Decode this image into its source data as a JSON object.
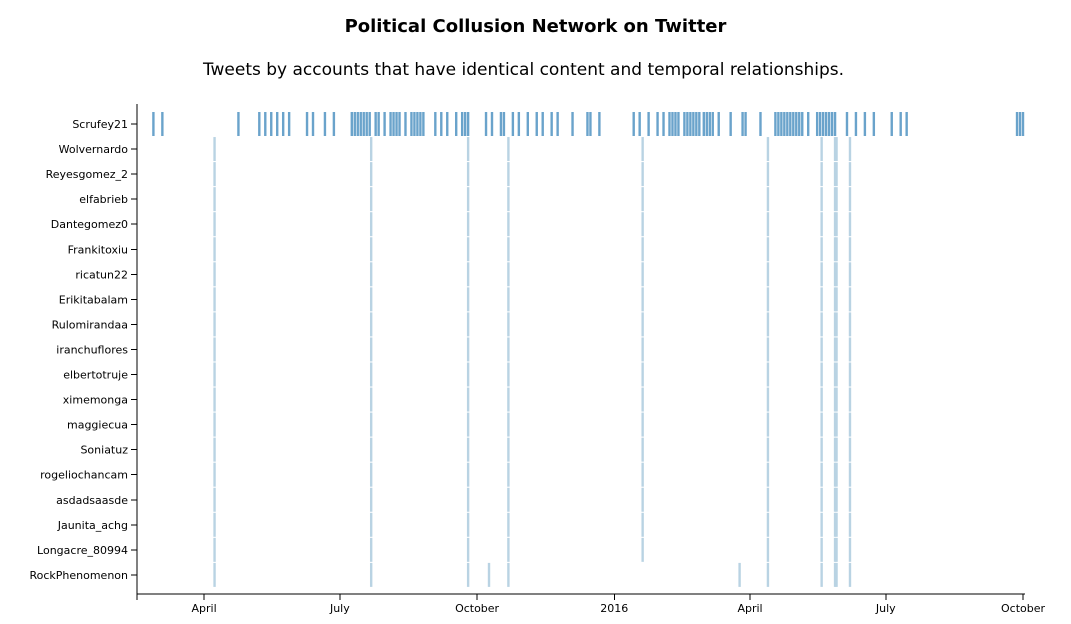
{
  "chart_data": {
    "type": "timeline",
    "title": "Political Collusion Network on Twitter",
    "subtitle": "Tweets by accounts that have identical content and temporal relationships.",
    "accounts": [
      "Scrufey21",
      "Wolvernardo",
      "Reyesgomez_2",
      "elfabrieb",
      "Dantegomez0",
      "Frankitoxiu",
      "ricatun22",
      "Erikitabalam",
      "Rulomirandaa",
      "iranchuflores",
      "elbertotruje",
      "ximemonga",
      "maggiecua",
      "Soniatuz",
      "rogeliochancam",
      "asdadsaasde",
      "Jaunita_achg",
      "Longacre_80994",
      "RockPhenomenon"
    ],
    "xlim": [
      "2015-02-15",
      "2016-10-01"
    ],
    "x_ticks": [
      {
        "date": "2015-04-01",
        "label": "April"
      },
      {
        "date": "2015-07-01",
        "label": "July"
      },
      {
        "date": "2015-10-01",
        "label": "October"
      },
      {
        "date": "2016-01-01",
        "label": "2016"
      },
      {
        "date": "2016-04-01",
        "label": "April"
      },
      {
        "date": "2016-07-01",
        "label": "July"
      },
      {
        "date": "2016-10-01",
        "label": "October"
      }
    ],
    "colors": {
      "dark": "#6aa3cb",
      "light": "#b9d3e3"
    },
    "series": [
      {
        "account": "Scrufey21",
        "tweet_dates": [
          "2015-02-26",
          "2015-03-04",
          "2015-04-24",
          "2015-05-08",
          "2015-05-12",
          "2015-05-16",
          "2015-05-20",
          "2015-05-24",
          "2015-05-28",
          "2015-06-09",
          "2015-06-13",
          "2015-06-21",
          "2015-06-27",
          "2015-07-09",
          "2015-07-11",
          "2015-07-13",
          "2015-07-15",
          "2015-07-17",
          "2015-07-19",
          "2015-07-21",
          "2015-07-25",
          "2015-07-27",
          "2015-07-31",
          "2015-08-04",
          "2015-08-06",
          "2015-08-08",
          "2015-08-10",
          "2015-08-14",
          "2015-08-18",
          "2015-08-20",
          "2015-08-22",
          "2015-08-24",
          "2015-08-26",
          "2015-09-03",
          "2015-09-07",
          "2015-09-11",
          "2015-09-17",
          "2015-09-21",
          "2015-09-23",
          "2015-09-25",
          "2015-10-07",
          "2015-10-11",
          "2015-10-17",
          "2015-10-19",
          "2015-10-25",
          "2015-10-29",
          "2015-11-04",
          "2015-11-10",
          "2015-11-14",
          "2015-11-20",
          "2015-11-24",
          "2015-12-04",
          "2015-12-14",
          "2015-12-16",
          "2015-12-22",
          "2016-01-14",
          "2016-01-18",
          "2016-01-24",
          "2016-01-30",
          "2016-02-03",
          "2016-02-07",
          "2016-02-09",
          "2016-02-11",
          "2016-02-13",
          "2016-02-17",
          "2016-02-19",
          "2016-02-21",
          "2016-02-23",
          "2016-02-25",
          "2016-02-27",
          "2016-03-01",
          "2016-03-03",
          "2016-03-05",
          "2016-03-07",
          "2016-03-11",
          "2016-03-19",
          "2016-03-27",
          "2016-03-29",
          "2016-04-08",
          "2016-04-18",
          "2016-04-20",
          "2016-04-22",
          "2016-04-24",
          "2016-04-26",
          "2016-04-28",
          "2016-04-30",
          "2016-05-02",
          "2016-05-04",
          "2016-05-06",
          "2016-05-10",
          "2016-05-16",
          "2016-05-18",
          "2016-05-20",
          "2016-05-22",
          "2016-05-24",
          "2016-05-26",
          "2016-05-28",
          "2016-06-05",
          "2016-06-11",
          "2016-06-17",
          "2016-06-23",
          "2016-07-05",
          "2016-07-11",
          "2016-07-15",
          "2016-09-27",
          "2016-09-29",
          "2016-10-01"
        ]
      },
      {
        "account": "Wolvernardo",
        "tweet_dates": [
          "2015-04-08",
          "2015-07-22",
          "2015-09-25",
          "2015-10-22",
          "2016-01-20",
          "2016-04-13",
          "2016-05-19",
          "2016-05-28",
          "2016-05-29",
          "2016-06-07"
        ]
      },
      {
        "account": "Reyesgomez_2",
        "tweet_dates": [
          "2015-04-08",
          "2015-07-22",
          "2015-09-25",
          "2015-10-22",
          "2016-01-20",
          "2016-04-13",
          "2016-05-19",
          "2016-05-28",
          "2016-05-29",
          "2016-06-07"
        ]
      },
      {
        "account": "elfabrieb",
        "tweet_dates": [
          "2015-04-08",
          "2015-07-22",
          "2015-09-25",
          "2015-10-22",
          "2016-01-20",
          "2016-04-13",
          "2016-05-19",
          "2016-05-28",
          "2016-05-29",
          "2016-06-07"
        ]
      },
      {
        "account": "Dantegomez0",
        "tweet_dates": [
          "2015-04-08",
          "2015-07-22",
          "2015-09-25",
          "2015-10-22",
          "2016-01-20",
          "2016-04-13",
          "2016-05-19",
          "2016-05-28",
          "2016-05-29",
          "2016-06-07"
        ]
      },
      {
        "account": "Frankitoxiu",
        "tweet_dates": [
          "2015-04-08",
          "2015-07-22",
          "2015-09-25",
          "2015-10-22",
          "2016-01-20",
          "2016-04-13",
          "2016-05-19",
          "2016-05-28",
          "2016-05-29",
          "2016-06-07"
        ]
      },
      {
        "account": "ricatun22",
        "tweet_dates": [
          "2015-04-08",
          "2015-07-22",
          "2015-09-25",
          "2015-10-22",
          "2016-01-20",
          "2016-04-13",
          "2016-05-19",
          "2016-05-28",
          "2016-05-29",
          "2016-06-07"
        ]
      },
      {
        "account": "Erikitabalam",
        "tweet_dates": [
          "2015-04-08",
          "2015-07-22",
          "2015-09-25",
          "2015-10-22",
          "2016-01-20",
          "2016-04-13",
          "2016-05-19",
          "2016-05-28",
          "2016-05-29",
          "2016-06-07"
        ]
      },
      {
        "account": "Rulomirandaa",
        "tweet_dates": [
          "2015-04-08",
          "2015-07-22",
          "2015-09-25",
          "2015-10-22",
          "2016-01-20",
          "2016-04-13",
          "2016-05-19",
          "2016-05-28",
          "2016-05-29",
          "2016-06-07"
        ]
      },
      {
        "account": "iranchuflores",
        "tweet_dates": [
          "2015-04-08",
          "2015-07-22",
          "2015-09-25",
          "2015-10-22",
          "2016-01-20",
          "2016-04-13",
          "2016-05-19",
          "2016-05-28",
          "2016-05-29",
          "2016-06-07"
        ]
      },
      {
        "account": "elbertotruje",
        "tweet_dates": [
          "2015-04-08",
          "2015-07-22",
          "2015-09-25",
          "2015-10-22",
          "2016-01-20",
          "2016-04-13",
          "2016-05-19",
          "2016-05-28",
          "2016-05-29",
          "2016-06-07"
        ]
      },
      {
        "account": "ximemonga",
        "tweet_dates": [
          "2015-04-08",
          "2015-07-22",
          "2015-09-25",
          "2015-10-22",
          "2016-01-20",
          "2016-04-13",
          "2016-05-19",
          "2016-05-28",
          "2016-05-29",
          "2016-06-07"
        ]
      },
      {
        "account": "maggiecua",
        "tweet_dates": [
          "2015-04-08",
          "2015-07-22",
          "2015-09-25",
          "2015-10-22",
          "2016-01-20",
          "2016-04-13",
          "2016-05-19",
          "2016-05-28",
          "2016-05-29",
          "2016-06-07"
        ]
      },
      {
        "account": "Soniatuz",
        "tweet_dates": [
          "2015-04-08",
          "2015-07-22",
          "2015-09-25",
          "2015-10-22",
          "2016-01-20",
          "2016-04-13",
          "2016-05-19",
          "2016-05-28",
          "2016-05-29",
          "2016-06-07"
        ]
      },
      {
        "account": "rogeliochancam",
        "tweet_dates": [
          "2015-04-08",
          "2015-07-22",
          "2015-09-25",
          "2015-10-22",
          "2016-01-20",
          "2016-04-13",
          "2016-05-19",
          "2016-05-28",
          "2016-05-29",
          "2016-06-07"
        ]
      },
      {
        "account": "asdadsaasde",
        "tweet_dates": [
          "2015-04-08",
          "2015-07-22",
          "2015-09-25",
          "2015-10-22",
          "2016-01-20",
          "2016-04-13",
          "2016-05-19",
          "2016-05-28",
          "2016-05-29",
          "2016-06-07"
        ]
      },
      {
        "account": "Jaunita_achg",
        "tweet_dates": [
          "2015-04-08",
          "2015-07-22",
          "2015-09-25",
          "2015-10-22",
          "2016-01-20",
          "2016-04-13",
          "2016-05-19",
          "2016-05-28",
          "2016-05-29",
          "2016-06-07"
        ]
      },
      {
        "account": "Longacre_80994",
        "tweet_dates": [
          "2015-04-08",
          "2015-07-22",
          "2015-09-25",
          "2015-10-22",
          "2016-01-20",
          "2016-04-13",
          "2016-05-19",
          "2016-05-28",
          "2016-05-29",
          "2016-06-07"
        ]
      },
      {
        "account": "RockPhenomenon",
        "tweet_dates": [
          "2015-04-08",
          "2015-07-22",
          "2015-09-25",
          "2015-10-09",
          "2015-10-22",
          "2016-03-25",
          "2016-04-13",
          "2016-05-19",
          "2016-05-28",
          "2016-05-29",
          "2016-06-07"
        ]
      }
    ]
  }
}
